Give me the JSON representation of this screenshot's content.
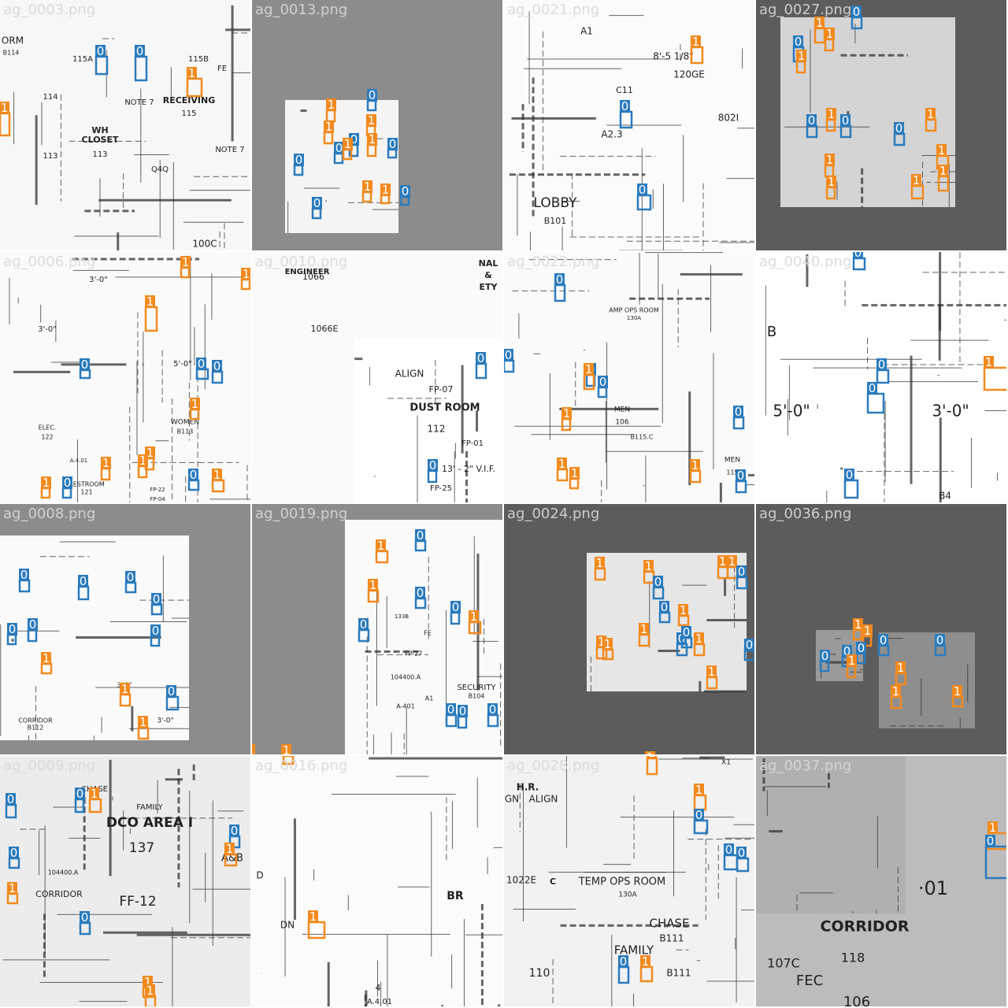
{
  "colors": {
    "0": "#2a7bbd",
    "1": "#f28a1e",
    "name": "#d9d9d9"
  },
  "tiles": [
    {
      "name": "ag_0003.png",
      "background": "#f7f7f7",
      "labels": [
        "RECEIVING",
        "115",
        "WH",
        "CLOSET",
        "113",
        "NOTE 7",
        "NOTE 7",
        "Q4Q",
        "115A",
        "115B",
        "114",
        "113",
        "FE",
        "100C",
        "ORM",
        "B114"
      ],
      "boxes": [
        "0",
        "0",
        "1",
        "1"
      ]
    },
    {
      "name": "ag_0013.png",
      "background": "#8c8c8c",
      "labels": [],
      "boxes": [
        "1",
        "0",
        "1",
        "1",
        "0",
        "0",
        "1",
        "0",
        "0",
        "1",
        "1",
        "0",
        "0",
        "1"
      ]
    },
    {
      "name": "ag_0021.png",
      "background": "#fbfbfb",
      "labels": [
        "A1",
        "120GE",
        "8'-5 1/8\"",
        "C11",
        "A2.3",
        "LOBBY",
        "B101",
        "802I"
      ],
      "boxes": [
        "1",
        "0",
        "0"
      ]
    },
    {
      "name": "ag_0027.png",
      "background": "#5c5c5c",
      "labels": [],
      "boxes": [
        "0",
        "1",
        "0",
        "1",
        "1",
        "0",
        "1",
        "0",
        "1",
        "0",
        "1",
        "1",
        "1",
        "1",
        "1"
      ]
    },
    {
      "name": "ag_0006.png",
      "background": "#fafafa",
      "labels": [
        "3'-0\"",
        "3'-0\"",
        "5'-0\"",
        "ELEC.",
        "122",
        "WOMEN",
        "B113",
        "RESTROOM",
        "121",
        "A.4.01",
        "FP-22",
        "FP-04"
      ],
      "boxes": [
        "1",
        "0",
        "0",
        "1",
        "0",
        "0",
        "1",
        "0",
        "1",
        "1",
        "1",
        "1",
        "0",
        "1",
        "1"
      ]
    },
    {
      "name": "ag_0010.png",
      "background": "#fafafa",
      "labels": [
        "ENGINEER",
        "1066",
        "1066E",
        "ALIGN",
        "FP-07",
        "DUST ROOM",
        "112",
        "FP-01",
        "13' - 2\" V.I.F.",
        "FP-25",
        "NAL",
        "&",
        "ETY"
      ],
      "boxes": [
        "0",
        "0"
      ]
    },
    {
      "name": "ag_0022.png",
      "background": "#fafafa",
      "labels": [
        "AMP OPS ROOM",
        "130A",
        "MEN",
        "106",
        "MEN",
        "115",
        "B115.C"
      ],
      "boxes": [
        "0",
        "0",
        "0",
        "1",
        "1",
        "0",
        "1",
        "1",
        "1",
        "0",
        "0"
      ]
    },
    {
      "name": "ag_0040.png",
      "background": "#ffffff",
      "labels": [
        "B",
        "5'-0\"",
        "3'-0\"",
        "B4"
      ],
      "boxes": [
        "0",
        "0",
        "0",
        "1",
        "0"
      ]
    },
    {
      "name": "ag_0008.png",
      "background": "#8c8c8c",
      "labels": [
        "CORRIDOR",
        "B112",
        "3'-0\"",
        "3'-0\""
      ],
      "boxes": [
        "0",
        "0",
        "1",
        "0",
        "0",
        "0",
        "0",
        "1",
        "1",
        "0",
        "0"
      ]
    },
    {
      "name": "ag_0019.png",
      "background": "#8c8c8c",
      "labels": [
        "SECURITY",
        "B104",
        "A-401",
        "FP-27",
        "104400.A",
        "FE",
        "133B",
        "A1"
      ],
      "boxes": [
        "1",
        "0",
        "1",
        "0",
        "0",
        "1",
        "0",
        "0",
        "0",
        "0",
        "1",
        "1"
      ]
    },
    {
      "name": "ag_0024.png",
      "background": "#5c5c5c",
      "labels": [],
      "boxes": [
        "1",
        "1",
        "0",
        "1",
        "1",
        "0",
        "0",
        "1",
        "1",
        "1",
        "0",
        "1",
        "0",
        "0",
        "1",
        "1",
        "1"
      ]
    },
    {
      "name": "ag_0036.png",
      "background": "#5c5c5c",
      "labels": [],
      "boxes": [
        "1",
        "1",
        "0",
        "0",
        "0",
        "1",
        "0",
        "0",
        "1",
        "1",
        "1"
      ]
    },
    {
      "name": "ag_0009.png",
      "background": "#ececec",
      "labels": [
        "DCO AREA I",
        "137",
        "FF-12",
        "A&B",
        "CORRIDOR",
        "CHASE",
        "FAMILY",
        "104400.A"
      ],
      "boxes": [
        "0",
        "0",
        "1",
        "0",
        "1",
        "0",
        "1",
        "0",
        "1",
        "1"
      ]
    },
    {
      "name": "ag_0016.png",
      "background": "#fbfbfb",
      "labels": [
        "BR",
        "D",
        "DN",
        "4",
        "A.4.01"
      ],
      "boxes": [
        "1",
        "1"
      ]
    },
    {
      "name": "ag_0028.png",
      "background": "#f2f2f2",
      "labels": [
        "H.R.",
        "GN",
        "ALIGN",
        "TEMP OPS ROOM",
        "130A",
        "C",
        "1022E",
        "CHASE",
        "B111",
        "FAMILY",
        "B111",
        "110",
        "X1"
      ],
      "boxes": [
        "1",
        "1",
        "0",
        "0",
        "0",
        "0",
        "1"
      ]
    },
    {
      "name": "ag_0037.png",
      "background": "#bcbcbc",
      "labels": [
        "CORRIDOR",
        "118",
        "107C",
        "FEC",
        "106",
        "·01"
      ],
      "boxes": [
        "1",
        "0"
      ]
    }
  ]
}
